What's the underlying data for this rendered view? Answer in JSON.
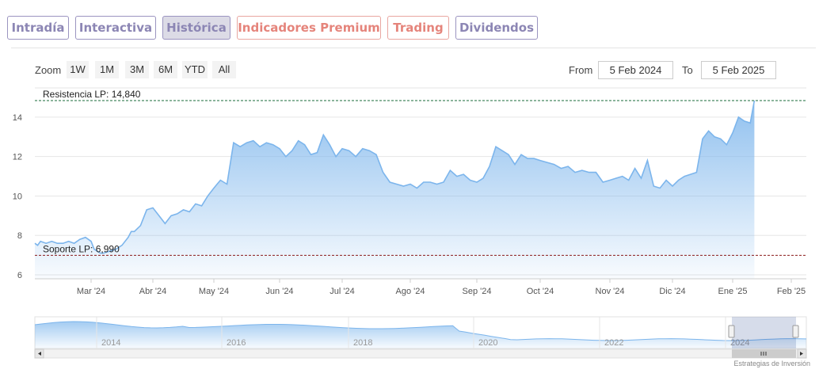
{
  "tabs": [
    {
      "label": "Intradía",
      "active": false,
      "premium": false
    },
    {
      "label": "Interactiva",
      "active": false,
      "premium": false
    },
    {
      "label": "Histórica",
      "active": true,
      "premium": false
    },
    {
      "label": "Indicadores Premium",
      "active": false,
      "premium": true
    },
    {
      "label": "Trading",
      "active": false,
      "premium": true
    },
    {
      "label": "Dividendos",
      "active": false,
      "premium": false
    }
  ],
  "toolbar": {
    "zoom_label": "Zoom",
    "zoom_buttons": [
      "1W",
      "1M",
      "3M",
      "6M",
      "YTD",
      "All"
    ],
    "from_label": "From",
    "from_value": "5 Feb 2024",
    "to_label": "To",
    "to_value": "5 Feb 2025"
  },
  "watermark": "Estrategias de Inversión",
  "colors": {
    "tab_border": "#9b94c0",
    "tab_text": "#8c86b4",
    "premium": "#e5847b",
    "series": "#7cb5ec",
    "resistance": "#1a6b3a",
    "support": "#8b1a1a"
  },
  "chart_data": {
    "type": "area",
    "y_ticks": [
      6,
      8,
      10,
      12,
      14
    ],
    "ylim": [
      6,
      14.8
    ],
    "x_ticks": [
      "Mar '24",
      "Abr '24",
      "May '24",
      "Jun '24",
      "Jul '24",
      "Ago '24",
      "Sep '24",
      "Oct '24",
      "Nov '24",
      "Dic '24",
      "Ene '25",
      "Feb '25"
    ],
    "annotations": {
      "resistance": {
        "label": "Resistencia LP: 14,840",
        "value": 14.84
      },
      "support": {
        "label": "Soporte LP: 6,990",
        "value": 6.99
      }
    },
    "series": [
      {
        "x": [
          0,
          0.05,
          0.1,
          0.2,
          0.3,
          0.4,
          0.5,
          0.6,
          0.7,
          0.8,
          0.9,
          0.95,
          1.0,
          1.05,
          1.1,
          1.15,
          1.2,
          1.3,
          1.4,
          1.5,
          1.6,
          1.65,
          1.7,
          1.8,
          1.9,
          2.0,
          2.1,
          2.2,
          2.3,
          2.4,
          2.5,
          2.6,
          2.7,
          2.8,
          2.9,
          3.0,
          3.05,
          3.1,
          3.2,
          3.3,
          3.4,
          3.5,
          3.6,
          3.7,
          3.8,
          3.9,
          4.0,
          4.1,
          4.2,
          4.3,
          4.4,
          4.5,
          4.6,
          4.7,
          4.8,
          4.9,
          5.0,
          5.1,
          5.2,
          5.3,
          5.4,
          5.5,
          5.6,
          5.7,
          5.8,
          5.9,
          6.0,
          6.1,
          6.2,
          6.3,
          6.4,
          6.5,
          6.6,
          6.7,
          6.8,
          6.9,
          7.0,
          7.1,
          7.2,
          7.3,
          7.4,
          7.5,
          7.6,
          7.7,
          7.8,
          7.9,
          8.0,
          8.1,
          8.2,
          8.3,
          8.4,
          8.5,
          8.6,
          8.7,
          8.8,
          8.9,
          9.0,
          9.1,
          9.2,
          9.3,
          9.4,
          9.5,
          9.6,
          9.7,
          9.8,
          9.9,
          10.0,
          10.1,
          10.2,
          10.3,
          10.4,
          10.5,
          10.6,
          10.7,
          10.8,
          10.9,
          11.0,
          11.1,
          11.2,
          11.3,
          11.37
        ],
        "values": [
          7.6,
          7.5,
          7.7,
          7.6,
          7.7,
          7.6,
          7.6,
          7.7,
          7.6,
          7.8,
          7.9,
          7.8,
          7.7,
          7.3,
          7.2,
          7.1,
          7.1,
          7.2,
          7.3,
          7.5,
          7.9,
          8.2,
          8.2,
          8.5,
          9.3,
          9.4,
          9.0,
          8.6,
          9.0,
          9.1,
          9.3,
          9.2,
          9.6,
          9.5,
          10.0,
          10.4,
          10.6,
          10.8,
          10.6,
          12.7,
          12.5,
          12.7,
          12.8,
          12.5,
          12.7,
          12.6,
          12.4,
          12.0,
          12.3,
          12.8,
          12.6,
          12.1,
          12.2,
          13.1,
          12.6,
          12.0,
          12.4,
          12.3,
          12.0,
          12.4,
          12.3,
          12.1,
          11.2,
          10.7,
          10.6,
          10.5,
          10.6,
          10.4,
          10.7,
          10.7,
          10.6,
          10.7,
          11.3,
          11.0,
          11.1,
          10.8,
          10.7,
          10.9,
          11.5,
          12.5,
          12.3,
          12.1,
          11.6,
          12.1,
          11.9,
          11.9,
          11.8,
          11.7,
          11.6,
          11.4,
          11.5,
          11.2,
          11.3,
          11.2,
          11.2,
          10.7,
          10.8,
          10.9,
          11.0,
          10.8,
          11.4,
          10.9,
          11.8,
          10.5,
          10.4,
          10.8,
          10.5,
          10.8,
          11.0,
          11.1,
          11.2,
          12.9,
          13.3,
          13.0,
          12.9,
          12.6,
          13.2,
          14.0,
          13.8,
          13.7,
          14.84
        ]
      }
    ],
    "navigator": {
      "x_ticks": [
        "2014",
        "2016",
        "2018",
        "2020",
        "2022",
        "2024"
      ]
    }
  }
}
